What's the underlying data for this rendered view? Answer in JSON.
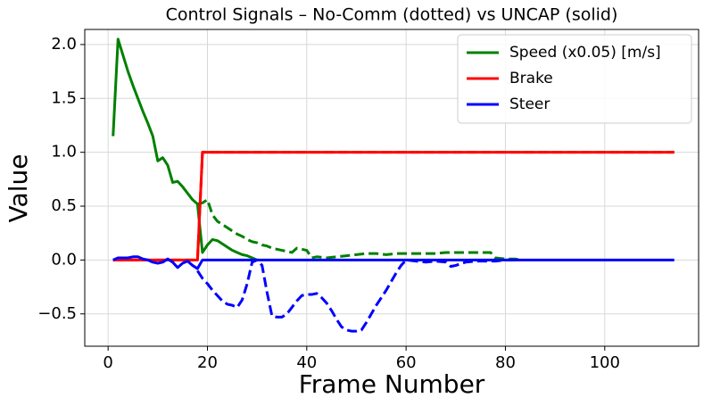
{
  "chart_data": {
    "type": "line",
    "title": "Control Signals – No-Comm (dotted) vs UNCAP (solid)",
    "x_label": "Frame Number",
    "y_label": "Value",
    "xlim": [
      -4.7,
      118.9
    ],
    "ylim": [
      -0.8,
      2.14
    ],
    "xticks": [
      0,
      20,
      40,
      60,
      80,
      100
    ],
    "yticks": [
      {
        "value": -0.5,
        "label": "−0.5"
      },
      {
        "value": 0.0,
        "label": "0.0"
      },
      {
        "value": 0.5,
        "label": "0.5"
      },
      {
        "value": 1.0,
        "label": "1.0"
      },
      {
        "value": 1.5,
        "label": "1.5"
      },
      {
        "value": 2.0,
        "label": "2.0"
      }
    ],
    "grid": true,
    "legend_position": "upper right",
    "series": [
      {
        "color": "#008000",
        "dashed": true,
        "x": [
          18,
          19,
          20,
          21,
          22,
          23,
          24,
          25,
          26,
          27,
          28,
          29,
          30,
          31,
          32,
          33,
          34,
          35,
          36,
          37,
          38,
          39,
          40,
          41,
          42,
          44,
          46,
          48,
          50,
          52,
          54,
          56,
          58,
          60,
          62,
          64,
          66,
          68,
          70,
          72,
          74,
          76,
          77,
          78,
          80,
          82,
          83
        ],
        "values": [
          0.52,
          0.53,
          0.56,
          0.42,
          0.36,
          0.33,
          0.3,
          0.27,
          0.24,
          0.22,
          0.19,
          0.17,
          0.16,
          0.14,
          0.13,
          0.11,
          0.1,
          0.09,
          0.08,
          0.07,
          0.11,
          0.1,
          0.09,
          0.02,
          0.03,
          0.02,
          0.03,
          0.04,
          0.05,
          0.06,
          0.06,
          0.05,
          0.06,
          0.06,
          0.06,
          0.06,
          0.06,
          0.07,
          0.07,
          0.07,
          0.07,
          0.07,
          0.07,
          0.02,
          0.01,
          0.01,
          0
        ]
      },
      {
        "color": "#ff0000",
        "dashed": true,
        "x": [
          1,
          18,
          19,
          114
        ],
        "values": [
          0,
          0,
          1,
          1
        ]
      },
      {
        "color": "#0000ff",
        "dashed": true,
        "x": [
          18,
          19,
          20,
          21,
          22,
          23,
          24,
          25,
          26,
          27,
          28,
          29,
          30,
          31,
          32,
          33,
          34,
          35,
          36,
          37,
          38,
          39,
          40,
          41,
          42,
          43,
          44,
          45,
          46,
          47,
          48,
          49,
          50,
          51,
          52,
          53,
          54,
          55,
          56,
          57,
          58,
          59,
          60,
          62,
          64,
          66,
          68,
          69,
          70,
          72,
          74,
          76,
          78,
          80,
          82
        ],
        "values": [
          -0.1,
          -0.17,
          -0.22,
          -0.28,
          -0.33,
          -0.38,
          -0.41,
          -0.42,
          -0.44,
          -0.37,
          -0.22,
          -0.02,
          0.0,
          -0.05,
          -0.3,
          -0.52,
          -0.53,
          -0.53,
          -0.5,
          -0.44,
          -0.38,
          -0.33,
          -0.32,
          -0.32,
          -0.31,
          -0.35,
          -0.4,
          -0.47,
          -0.55,
          -0.62,
          -0.65,
          -0.66,
          -0.66,
          -0.65,
          -0.58,
          -0.5,
          -0.42,
          -0.35,
          -0.28,
          -0.2,
          -0.12,
          -0.05,
          0.0,
          -0.01,
          -0.02,
          -0.01,
          -0.02,
          -0.06,
          -0.05,
          -0.02,
          -0.01,
          -0.01,
          -0.01,
          0.0,
          0.0
        ]
      },
      {
        "name": "Speed (x0.05) [m/s]",
        "color": "#008000",
        "x": [
          1,
          2,
          3,
          4,
          5,
          6,
          7,
          8,
          9,
          10,
          11,
          12,
          13,
          14,
          15,
          16,
          17,
          18,
          19,
          20,
          21,
          22,
          23,
          24,
          25,
          26,
          27,
          28,
          29,
          30
        ],
        "values": [
          1.15,
          2.05,
          1.9,
          1.75,
          1.62,
          1.5,
          1.38,
          1.27,
          1.15,
          0.92,
          0.95,
          0.88,
          0.72,
          0.73,
          0.68,
          0.62,
          0.56,
          0.52,
          0.07,
          0.14,
          0.19,
          0.18,
          0.15,
          0.12,
          0.09,
          0.07,
          0.05,
          0.04,
          0.02,
          0.0
        ]
      },
      {
        "name": "Brake",
        "color": "#ff0000",
        "x": [
          1,
          18,
          19,
          114
        ],
        "values": [
          0,
          0,
          1,
          1
        ]
      },
      {
        "name": "Steer",
        "color": "#0000ff",
        "x": [
          1,
          2,
          3,
          4,
          5,
          6,
          7,
          8,
          9,
          10,
          11,
          12,
          13,
          14,
          15,
          16,
          17,
          18,
          19,
          114
        ],
        "values": [
          0,
          0.02,
          0.02,
          0.02,
          0.03,
          0.03,
          0.01,
          0,
          -0.02,
          -0.03,
          -0.02,
          0.01,
          -0.02,
          -0.07,
          -0.03,
          -0.01,
          -0.05,
          -0.08,
          0,
          0
        ]
      }
    ]
  }
}
